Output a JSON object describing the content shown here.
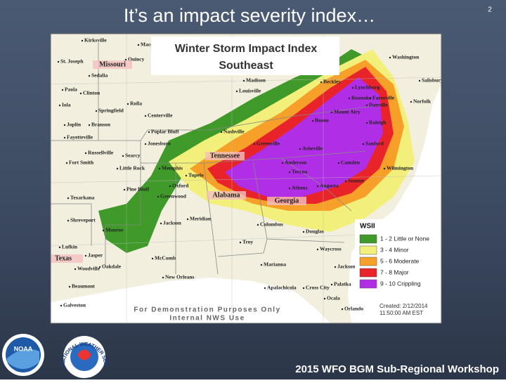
{
  "slide": {
    "title": "It’s an impact severity index…",
    "page_number": "2",
    "footer": "2015 WFO BGM Sub-Regional Workshop"
  },
  "map": {
    "title": "Winter Storm Impact Index",
    "subtitle": "Southeast",
    "legend": {
      "title": "WSII",
      "items": [
        {
          "label": "1 - 2 Little or None",
          "color": "#3f9a2a"
        },
        {
          "label": "3 - 4 Minor",
          "color": "#f2f07a"
        },
        {
          "label": "5 - 6 Moderate",
          "color": "#f6a02a"
        },
        {
          "label": "7 - 8 Major",
          "color": "#e8242a"
        },
        {
          "label": "9 - 10 Crippling",
          "color": "#b02ee6"
        }
      ]
    },
    "disclaimer": [
      "For Demonstration Purposes Only",
      "Internal NWS Use"
    ],
    "created": [
      "Created: 2/12/2014",
      "11:50:00 AM EST"
    ],
    "states": [
      "Missouri",
      "Tennessee",
      "Alabama",
      "Georgia",
      "Texas"
    ],
    "cities": [
      "Kirksville",
      "Macon",
      "Quincy",
      "St. Joseph",
      "Sedalia",
      "Clinton",
      "Paola",
      "Iola",
      "Springfield",
      "Rolla",
      "Joplin",
      "Branson",
      "Fayetteville",
      "Poplar Bluff",
      "Jonesboro",
      "Russellville",
      "Searcy",
      "Fort Smith",
      "Little Rock",
      "Memphis",
      "Tupelo",
      "Oxford",
      "Greenwood",
      "Pine Bluff",
      "Texarkana",
      "Shreveport",
      "Monroe",
      "Jackson",
      "Meridian",
      "Lufkin",
      "Jasper",
      "Woodville",
      "Oakdale",
      "Beaumont",
      "McComb",
      "New Orleans",
      "Galveston",
      "Nashville",
      "Madison",
      "Louisville",
      "Centerville",
      "Greenville",
      "Asheville",
      "Anderson",
      "Toccoa",
      "Athens",
      "Augusta",
      "Sumter",
      "Camden",
      "Wilmington",
      "Sanford",
      "Raleigh",
      "Roanoke",
      "Danville",
      "Mount Airy",
      "Boone",
      "Beckley",
      "Lynchburg",
      "Farmville",
      "Norfolk",
      "Washington",
      "Salisbury",
      "Columbus",
      "Troy",
      "Douglas",
      "Waycross",
      "Marianna",
      "Apalachicola",
      "Cross City",
      "Jacksonville",
      "Palatka",
      "Ocala",
      "Orlando"
    ]
  },
  "logos": {
    "noaa": "NOAA",
    "nws": "NATIONAL WEATHER SERVICE"
  }
}
